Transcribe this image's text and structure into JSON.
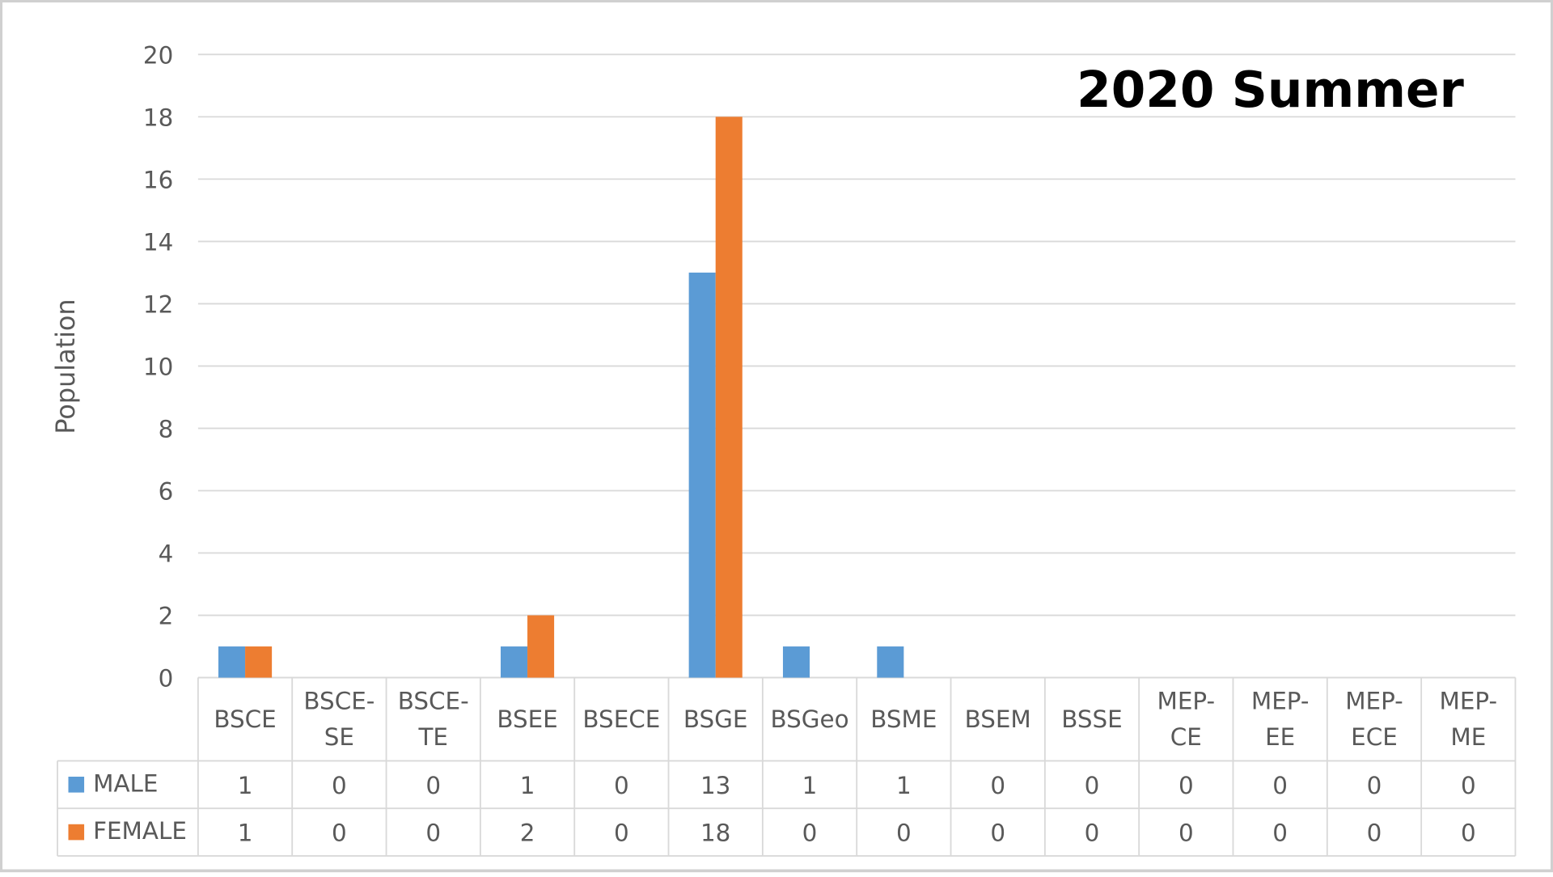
{
  "chart_data": {
    "type": "bar",
    "title": "2020 Summer",
    "y_label": "Population",
    "categories": [
      "BSCE",
      "BSCE-SE",
      "BSCE-TE",
      "BSEE",
      "BSECE",
      "BSGE",
      "BSGeo",
      "BSME",
      "BSEM",
      "BSSE",
      "MEP-CE",
      "MEP-EE",
      "MEP-ECE",
      "MEP-ME"
    ],
    "series": [
      {
        "name": "MALE",
        "color": "#5b9bd5",
        "values": [
          1,
          0,
          0,
          1,
          0,
          13,
          1,
          1,
          0,
          0,
          0,
          0,
          0,
          0
        ]
      },
      {
        "name": "FEMALE",
        "color": "#ed7d31",
        "values": [
          1,
          0,
          0,
          2,
          0,
          18,
          0,
          0,
          0,
          0,
          0,
          0,
          0,
          0
        ]
      }
    ],
    "ylim": [
      0,
      20
    ],
    "yticks": [
      0,
      2,
      4,
      6,
      8,
      10,
      12,
      14,
      16,
      18,
      20
    ],
    "grid": true,
    "data_table": true
  }
}
